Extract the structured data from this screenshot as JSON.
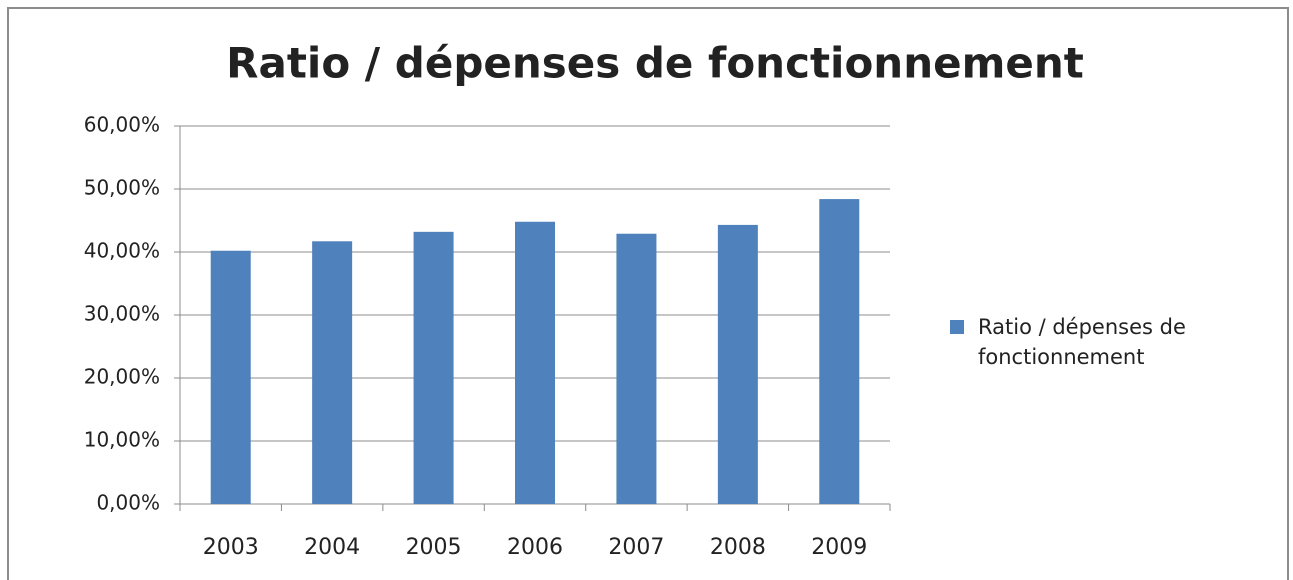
{
  "chart_data": {
    "type": "bar",
    "title": "Ratio / dépenses de fonctionnement",
    "categories": [
      "2003",
      "2004",
      "2005",
      "2006",
      "2007",
      "2008",
      "2009"
    ],
    "series": [
      {
        "name": "Ratio / dépenses de fonctionnement",
        "color": "#4f81bd",
        "values": [
          40.2,
          41.7,
          43.2,
          44.8,
          42.9,
          44.3,
          48.4
        ]
      }
    ],
    "ylim": [
      0,
      60
    ],
    "yticks": [
      {
        "value": 0,
        "label": "0,00%"
      },
      {
        "value": 10,
        "label": "10,00%"
      },
      {
        "value": 20,
        "label": "20,00%"
      },
      {
        "value": 30,
        "label": "30,00%"
      },
      {
        "value": 40,
        "label": "40,00%"
      },
      {
        "value": 50,
        "label": "50,00%"
      },
      {
        "value": 60,
        "label": "60,00%"
      }
    ],
    "grid": true,
    "legend": "right"
  }
}
